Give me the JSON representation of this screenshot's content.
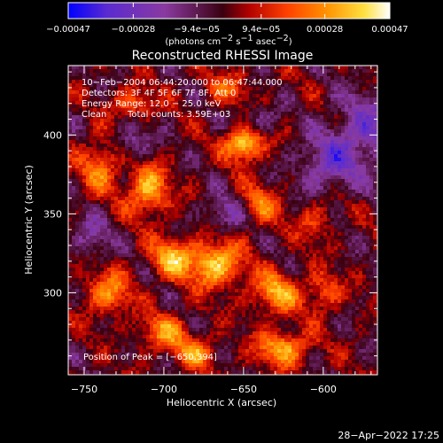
{
  "chart_data": {
    "type": "heatmap",
    "title": "Reconstructed RHESSI Image",
    "xlabel": "Heliocentric X (arcsec)",
    "ylabel": "Heliocentric Y (arcsec)",
    "xlim": [
      -760,
      -566
    ],
    "ylim": [
      248,
      444
    ],
    "x_ticks": [
      -750,
      -700,
      -650,
      -600
    ],
    "x_tick_labels": [
      "−750",
      "−700",
      "−650",
      "−600"
    ],
    "y_ticks": [
      300,
      350,
      400
    ],
    "y_tick_labels": [
      "300",
      "350",
      "400"
    ],
    "colorbar": {
      "range": [
        -0.00047,
        0.00047
      ],
      "ticks": [
        -0.00047,
        -0.00028,
        -9.4e-05,
        9.4e-05,
        0.00028,
        0.00047
      ],
      "tick_labels": [
        "−0.00047",
        "−0.00028",
        "−9.4e−05",
        "9.4e−05",
        "0.00028",
        "0.00047"
      ],
      "label_main": "(photons cm",
      "label_sup1": "−2",
      "label_mid1": " s",
      "label_sup2": "−1",
      "label_mid2": " asec",
      "label_sup3": "−2",
      "label_end": ")",
      "colors": [
        "#0000ff",
        "#5a2bd0",
        "#8a3aa0",
        "#3a0010",
        "#b00000",
        "#ff4000",
        "#ff9000",
        "#ffe040",
        "#ffffff"
      ]
    },
    "peak": {
      "x": -650,
      "y": 394,
      "value": 0.00047
    },
    "blobs": [
      {
        "x": -650,
        "y": 394,
        "amp": 1.0,
        "sx": 8,
        "sy": 7
      },
      {
        "x": -668,
        "y": 318,
        "amp": 0.85,
        "sx": 12,
        "sy": 10
      },
      {
        "x": -695,
        "y": 322,
        "amp": 0.7,
        "sx": 9,
        "sy": 9
      },
      {
        "x": -710,
        "y": 365,
        "amp": 0.75,
        "sx": 9,
        "sy": 11
      },
      {
        "x": -630,
        "y": 300,
        "amp": 0.7,
        "sx": 10,
        "sy": 9
      },
      {
        "x": -740,
        "y": 380,
        "amp": 0.55,
        "sx": 9,
        "sy": 12
      },
      {
        "x": -735,
        "y": 300,
        "amp": 0.6,
        "sx": 10,
        "sy": 10
      },
      {
        "x": -625,
        "y": 265,
        "amp": 0.7,
        "sx": 12,
        "sy": 8
      },
      {
        "x": -640,
        "y": 355,
        "amp": 0.5,
        "sx": 9,
        "sy": 10
      },
      {
        "x": -700,
        "y": 275,
        "amp": 0.55,
        "sx": 11,
        "sy": 8
      },
      {
        "x": -600,
        "y": 300,
        "amp": 0.45,
        "sx": 8,
        "sy": 9
      },
      {
        "x": -720,
        "y": 420,
        "amp": 0.45,
        "sx": 10,
        "sy": 7
      },
      {
        "x": -660,
        "y": 430,
        "amp": 0.4,
        "sx": 10,
        "sy": 7
      },
      {
        "x": -605,
        "y": 345,
        "amp": 0.35,
        "sx": 8,
        "sy": 9
      },
      {
        "x": -680,
        "y": 262,
        "amp": 0.55,
        "sx": 9,
        "sy": 7
      },
      {
        "x": -575,
        "y": 400,
        "amp": -0.5,
        "sx": 15,
        "sy": 18
      },
      {
        "x": -600,
        "y": 380,
        "amp": -0.45,
        "sx": 12,
        "sy": 12
      },
      {
        "x": -720,
        "y": 395,
        "amp": -0.4,
        "sx": 8,
        "sy": 8
      },
      {
        "x": -660,
        "y": 350,
        "amp": -0.4,
        "sx": 10,
        "sy": 8
      },
      {
        "x": -745,
        "y": 335,
        "amp": -0.35,
        "sx": 8,
        "sy": 10
      },
      {
        "x": -640,
        "y": 410,
        "amp": -0.3,
        "sx": 8,
        "sy": 6
      }
    ]
  },
  "info": {
    "time_range": "10−Feb−2004 06:44:20.000 to 06:47:44.000",
    "detectors": "Detectors: 3F 4F 5F 6F 7F 8F, Att 0",
    "energy": "Energy Range: 12.0 − 25.0 keV",
    "clean": "Clean",
    "total_counts": "Total counts: 3.59E+03",
    "peak_label": "Position of Peak = [−650,394]"
  },
  "timestamp": "28−Apr−2022 17:25"
}
